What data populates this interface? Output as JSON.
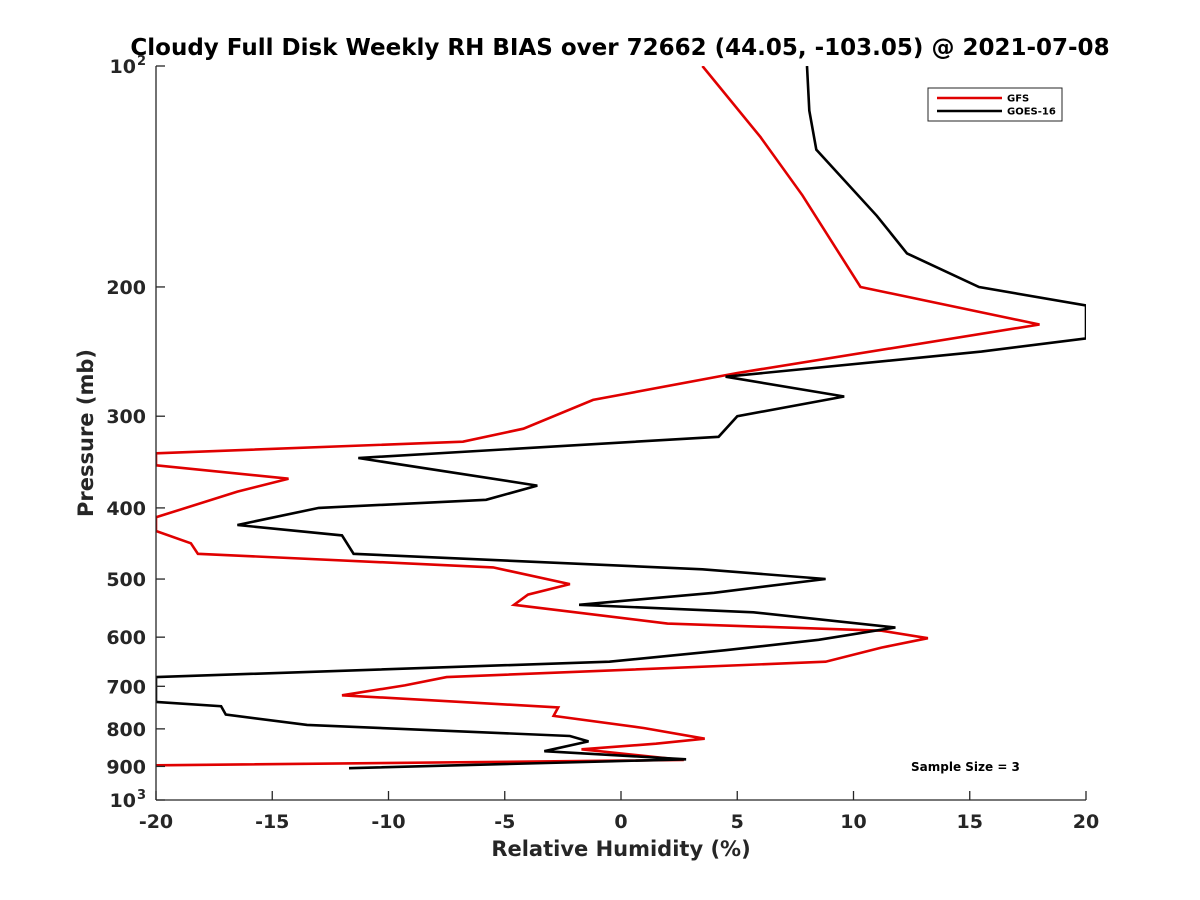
{
  "chart_data": {
    "type": "line",
    "title": "Cloudy Full Disk Weekly RH BIAS over 72662 (44.05, -103.05) @ 2021-07-08",
    "xlabel": "Relative Humidity (%)",
    "ylabel": "Pressure (mb)",
    "xlim": [
      -20,
      20
    ],
    "ylim": [
      100,
      1000
    ],
    "y_scale": "log",
    "y_reversed": true,
    "x_ticks": [
      -20,
      -15,
      -10,
      -5,
      0,
      5,
      10,
      15,
      20
    ],
    "x_tick_labels": [
      "-20",
      "-15",
      "-10",
      "-5",
      "0",
      "5",
      "10",
      "15",
      "20"
    ],
    "y_ticks": [
      100,
      200,
      300,
      400,
      500,
      600,
      700,
      800,
      900,
      1000
    ],
    "y_tick_labels": [
      {
        "base": "10",
        "exp": "2"
      },
      {
        "base": "200",
        "exp": ""
      },
      {
        "base": "300",
        "exp": ""
      },
      {
        "base": "400",
        "exp": ""
      },
      {
        "base": "500",
        "exp": ""
      },
      {
        "base": "600",
        "exp": ""
      },
      {
        "base": "700",
        "exp": ""
      },
      {
        "base": "800",
        "exp": ""
      },
      {
        "base": "900",
        "exp": ""
      },
      {
        "base": "10",
        "exp": "3"
      }
    ],
    "grid": false,
    "legend_position": "top-right",
    "annotation": "Sample Size = 3",
    "series": [
      {
        "name": "GFS",
        "color": "#e00000",
        "points": [
          [
            3.5,
            100
          ],
          [
            6,
            125
          ],
          [
            7.8,
            150
          ],
          [
            10.3,
            200
          ],
          [
            18,
            225
          ],
          [
            5,
            262
          ],
          [
            -1.2,
            285
          ],
          [
            -4.2,
            312
          ],
          [
            -6.8,
            325
          ],
          [
            -20,
            337
          ],
          [
            -20,
            350
          ],
          [
            -14.3,
            365
          ],
          [
            -16.5,
            380
          ],
          [
            -20,
            412
          ],
          [
            -20,
            430
          ],
          [
            -18.5,
            447
          ],
          [
            -18.2,
            462
          ],
          [
            -5.5,
            482
          ],
          [
            -2.2,
            508
          ],
          [
            -4,
            525
          ],
          [
            -4.6,
            542
          ],
          [
            2,
            575
          ],
          [
            11.2,
            588
          ],
          [
            13.2,
            602
          ],
          [
            11.2,
            620
          ],
          [
            8.8,
            648
          ],
          [
            -7.5,
            680
          ],
          [
            -9.3,
            698
          ],
          [
            -12,
            720
          ],
          [
            -2.7,
            748
          ],
          [
            -2.9,
            768
          ],
          [
            1,
            798
          ],
          [
            3.6,
            825
          ],
          [
            1.5,
            838
          ],
          [
            -1.7,
            853
          ],
          [
            2.7,
            882
          ],
          [
            -20,
            897
          ]
        ]
      },
      {
        "name": "GOES-16",
        "color": "#000000",
        "points": [
          [
            8,
            100
          ],
          [
            8.1,
            115
          ],
          [
            8.4,
            130
          ],
          [
            11,
            160
          ],
          [
            12.3,
            180
          ],
          [
            15.4,
            200
          ],
          [
            20,
            212
          ],
          [
            20,
            235
          ],
          [
            15.5,
            245
          ],
          [
            4.5,
            265
          ],
          [
            9.6,
            282
          ],
          [
            5,
            300
          ],
          [
            4.2,
            320
          ],
          [
            -11.3,
            342
          ],
          [
            -3.6,
            373
          ],
          [
            -5.8,
            390
          ],
          [
            -13,
            400
          ],
          [
            -16.5,
            422
          ],
          [
            -12,
            436
          ],
          [
            -11.5,
            462
          ],
          [
            3.5,
            485
          ],
          [
            8.8,
            500
          ],
          [
            4,
            522
          ],
          [
            -1.8,
            542
          ],
          [
            5.7,
            555
          ],
          [
            11.8,
            582
          ],
          [
            8.5,
            605
          ],
          [
            4.5,
            625
          ],
          [
            -0.5,
            648
          ],
          [
            -20,
            680
          ],
          [
            -20,
            735
          ],
          [
            -17.2,
            745
          ],
          [
            -17,
            765
          ],
          [
            -13.5,
            790
          ],
          [
            -2.2,
            818
          ],
          [
            -1.4,
            832
          ],
          [
            -3.3,
            858
          ],
          [
            2.8,
            880
          ],
          [
            -11.7,
            905
          ]
        ]
      }
    ]
  }
}
